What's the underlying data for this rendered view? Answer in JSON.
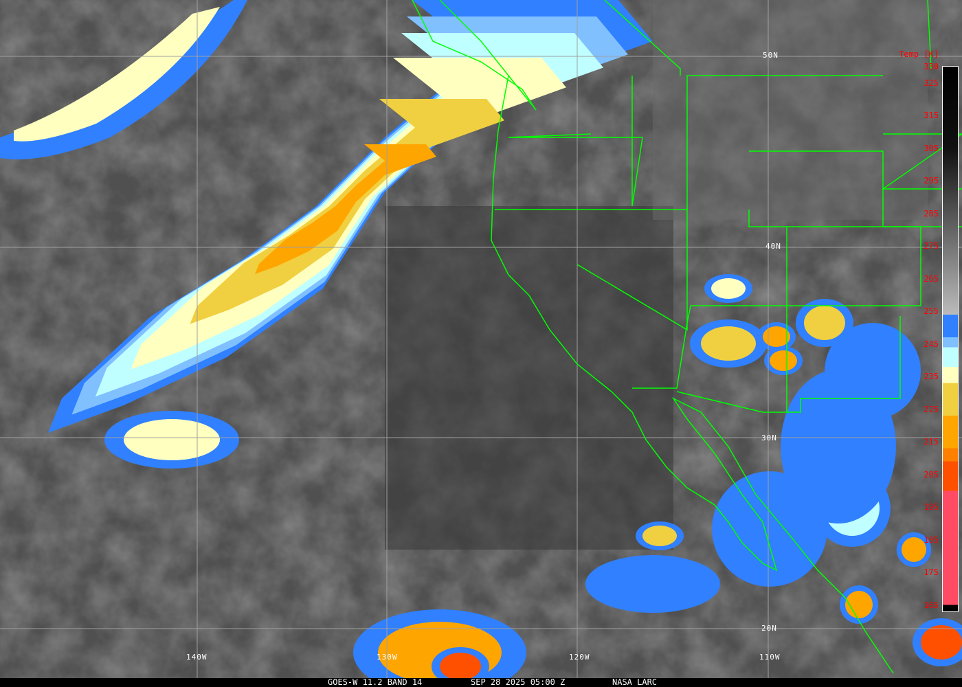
{
  "image": {
    "satellite": "GOES-W",
    "footer": {
      "band": "GOES-W 11.2 BAND 14",
      "datetime": "SEP 28 2025 05:00 Z",
      "credit": "NASA LARC"
    },
    "grid_labels": {
      "lat": [
        "50N",
        "40N",
        "30N",
        "20N"
      ],
      "lon": [
        "140W",
        "130W",
        "120W",
        "110W"
      ]
    },
    "colorbar": {
      "title": "Temp [K]",
      "range": [
        163,
        330
      ],
      "ticks": [
        "330",
        "325",
        "315",
        "305",
        "295",
        "285",
        "275",
        "265",
        "255",
        "245",
        "235",
        "225",
        "215",
        "205",
        "195",
        "185",
        "175",
        "165"
      ],
      "stops": [
        {
          "from": 163,
          "to": 165,
          "color": "#000000"
        },
        {
          "from": 165,
          "to": 200,
          "color": "#ff4c64"
        },
        {
          "from": 200,
          "to": 209,
          "color": "#ff5000"
        },
        {
          "from": 209,
          "to": 213,
          "color": "#ff8000"
        },
        {
          "from": 213,
          "to": 223,
          "color": "#ffa500"
        },
        {
          "from": 223,
          "to": 233,
          "color": "#f0d040"
        },
        {
          "from": 233,
          "to": 238,
          "color": "#ffffc0"
        },
        {
          "from": 238,
          "to": 244,
          "color": "#c0ffff"
        },
        {
          "from": 244,
          "to": 247,
          "color": "#80c0ff"
        },
        {
          "from": 247,
          "to": 254,
          "color": "#3080ff"
        }
      ],
      "gray_range": [
        254,
        330
      ]
    },
    "colors": {
      "borders": "#00ff00",
      "grid": "#a0a0a0",
      "labels": "#ffffff",
      "ticks": "#ff0000"
    }
  }
}
